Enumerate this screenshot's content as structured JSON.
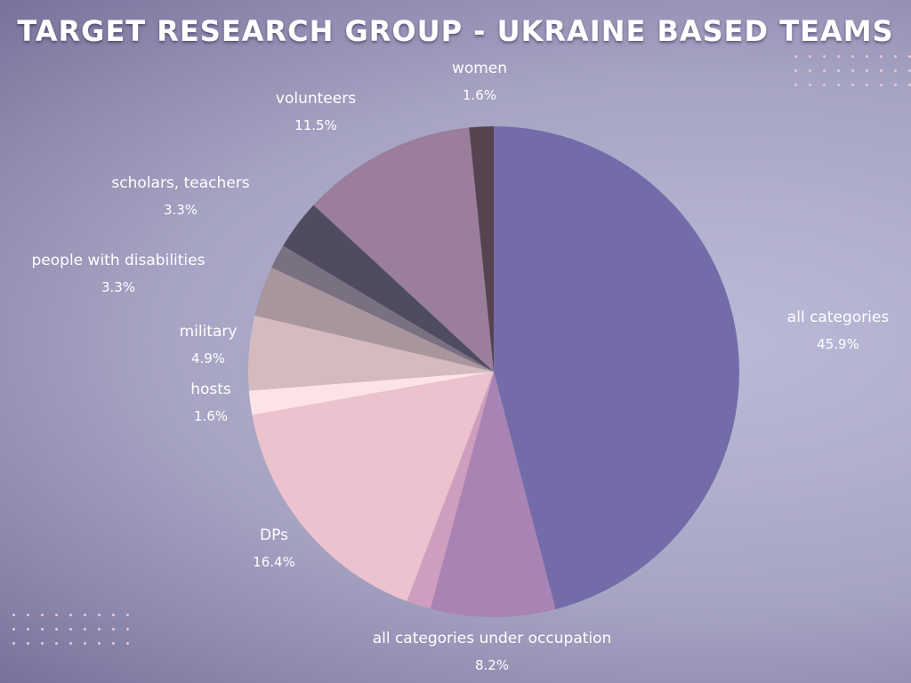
{
  "chart_data": {
    "type": "pie",
    "title": "TARGET RESEARCH GROUP - UKRAINE BASED TEAMS",
    "unit": "%",
    "slices": [
      {
        "label": "all categories",
        "value": 45.9,
        "value_label": "45.9%",
        "color": "#736ca9"
      },
      {
        "label": "all categories under occupation",
        "value": 8.2,
        "value_label": "8.2%",
        "color": "#a883b3"
      },
      {
        "label": "",
        "value": 1.6,
        "value_label": "",
        "color": "#cf9dbd"
      },
      {
        "label": "DPs",
        "value": 16.4,
        "value_label": "16.4%",
        "color": "#ebc2cd"
      },
      {
        "label": "hosts",
        "value": 1.6,
        "value_label": "1.6%",
        "color": "#fde3e6"
      },
      {
        "label": "military",
        "value": 4.9,
        "value_label": "4.9%",
        "color": "#d5bac0"
      },
      {
        "label": "people with disabilities",
        "value": 3.3,
        "value_label": "3.3%",
        "color": "#a9959c"
      },
      {
        "label": "",
        "value": 1.6,
        "value_label": "",
        "color": "#797082"
      },
      {
        "label": "scholars, teachers",
        "value": 3.3,
        "value_label": "3.3%",
        "color": "#4f4c5f"
      },
      {
        "label": "volunteers",
        "value": 11.5,
        "value_label": "11.5%",
        "color": "#9a7e9b"
      },
      {
        "label": "women",
        "value": 1.6,
        "value_label": "1.6%",
        "color": "#554350"
      }
    ],
    "legend": "none"
  }
}
